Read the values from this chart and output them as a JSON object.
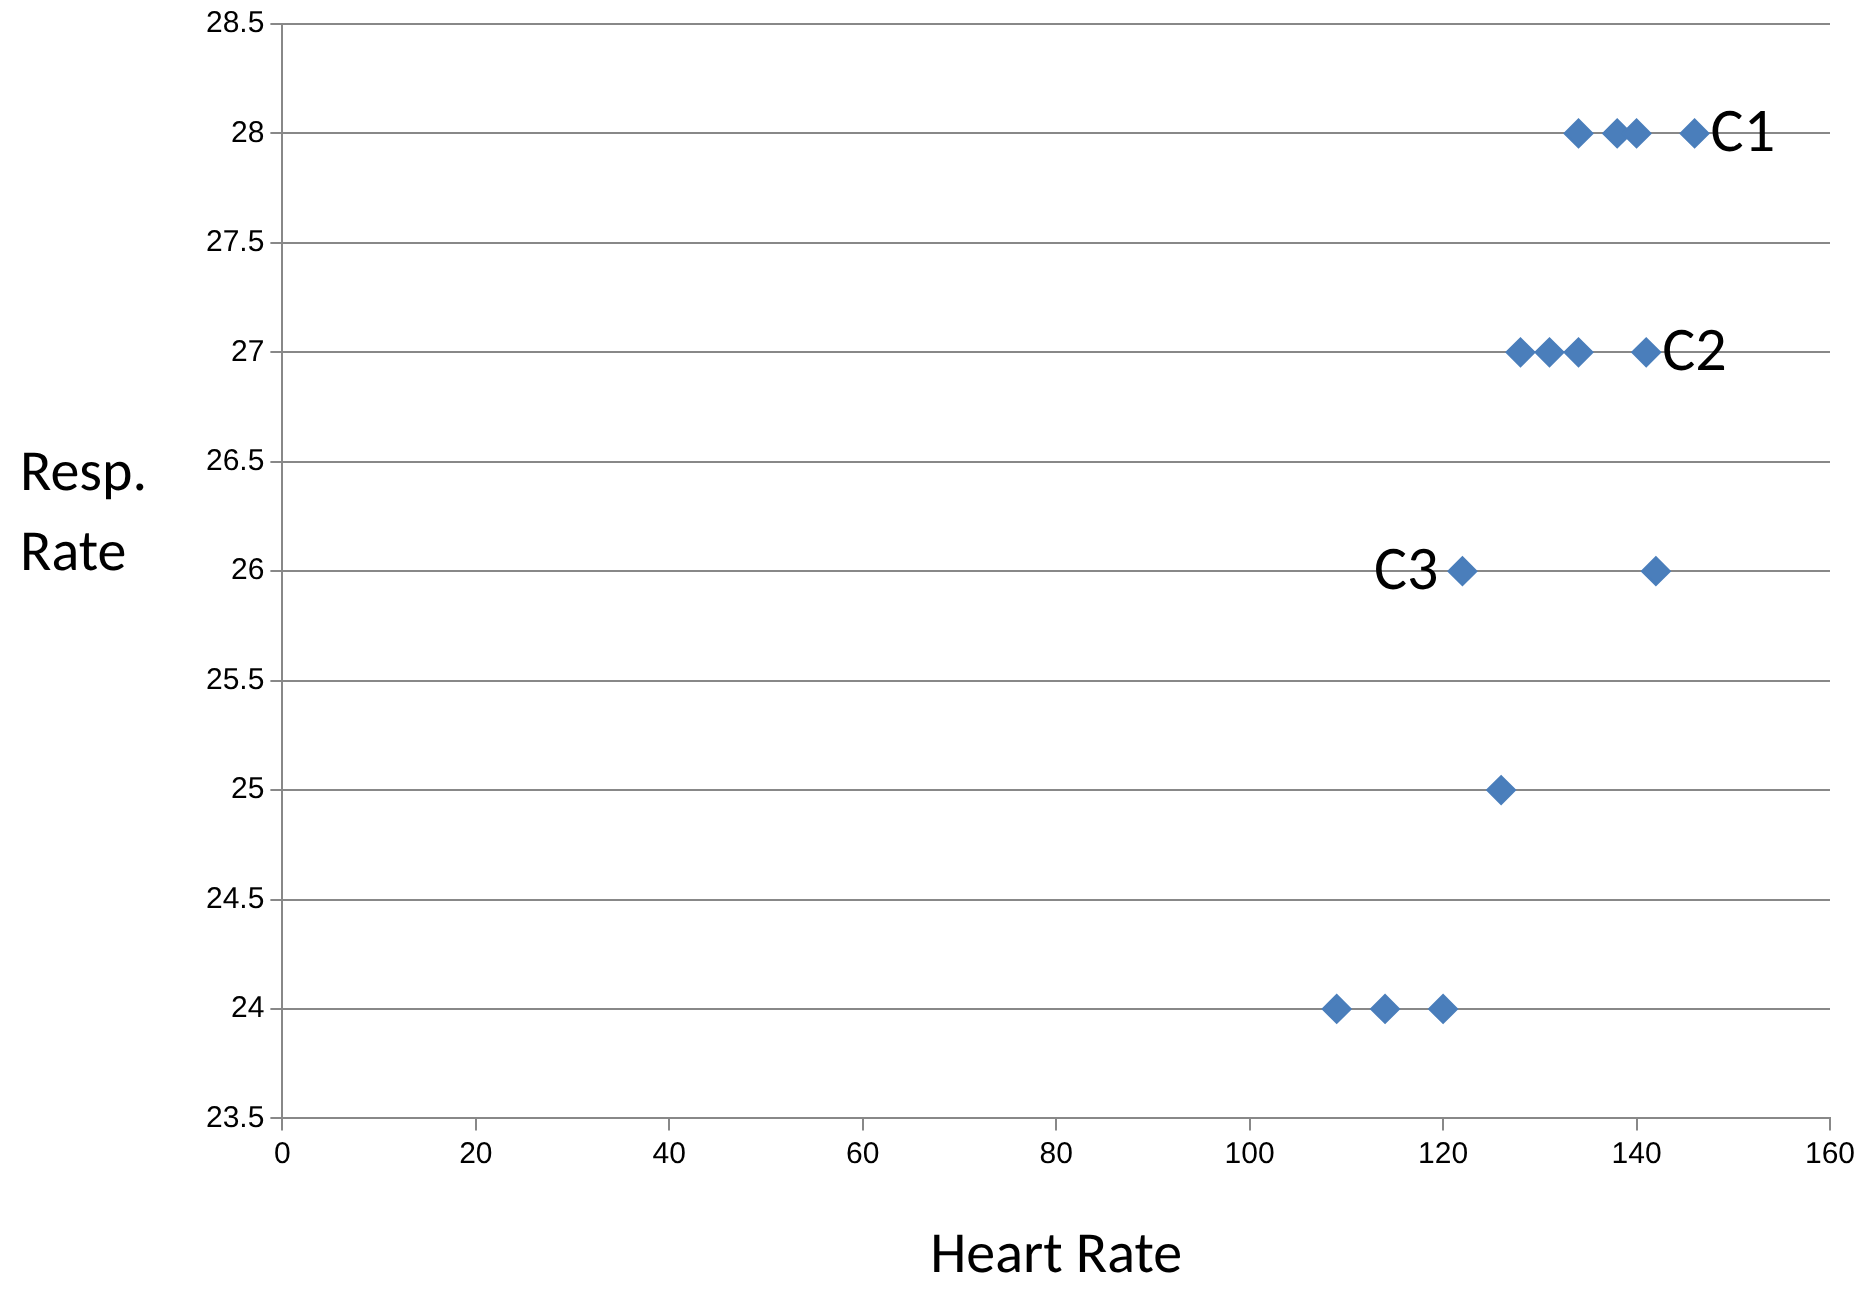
{
  "chart_data": {
    "type": "scatter",
    "xlabel": "Heart Rate",
    "ylabel": "Resp. Rate",
    "x": [
      134,
      138,
      140,
      146,
      128,
      131,
      134,
      141,
      122,
      142,
      126,
      109,
      114,
      120
    ],
    "values": [
      28,
      28,
      28,
      28,
      27,
      27,
      27,
      27,
      26,
      26,
      25,
      24,
      24,
      24
    ],
    "color": "#4a7ebb",
    "marker": "diamond",
    "xlim": [
      0,
      160
    ],
    "xticks": [
      0,
      20,
      40,
      60,
      80,
      100,
      120,
      140,
      160
    ],
    "ylim": [
      23.5,
      28.5
    ],
    "yticks": [
      23.5,
      24,
      24.5,
      25,
      25.5,
      26,
      26.5,
      27,
      27.5,
      28,
      28.5
    ],
    "grid": "y",
    "legend": false,
    "annotations": [
      {
        "text": "C1",
        "x": 146,
        "y": 28
      },
      {
        "text": "C2",
        "x": 141,
        "y": 27
      },
      {
        "text": "C3",
        "x": 122,
        "y": 26
      }
    ]
  }
}
